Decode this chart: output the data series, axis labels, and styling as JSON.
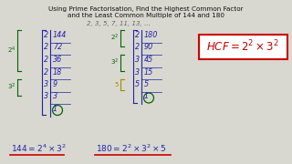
{
  "title_line1": "Using Prime Factorisation, Find the Highest Common Factor",
  "title_line2": "and the Least Common Multiple of 144 and 180",
  "primes_line": "2, 3, 5, 7, 11, 13, …",
  "bg_color": "#d8d8d0",
  "title_color": "#111111",
  "primes_color": "#666666",
  "green_color": "#006600",
  "blue_color": "#2222aa",
  "red_color": "#cc0000",
  "yellow_color": "#aa8800",
  "div144": [
    [
      "2",
      "144"
    ],
    [
      "2",
      "72"
    ],
    [
      "2",
      "36"
    ],
    [
      "2",
      "18"
    ],
    [
      "3",
      "9"
    ],
    [
      "3",
      "3"
    ],
    [
      "",
      "1"
    ]
  ],
  "div180": [
    [
      "2",
      "180"
    ],
    [
      "2",
      "90"
    ],
    [
      "3",
      "45"
    ],
    [
      "3",
      "15"
    ],
    [
      "5",
      "5"
    ],
    [
      "",
      "1"
    ]
  ]
}
